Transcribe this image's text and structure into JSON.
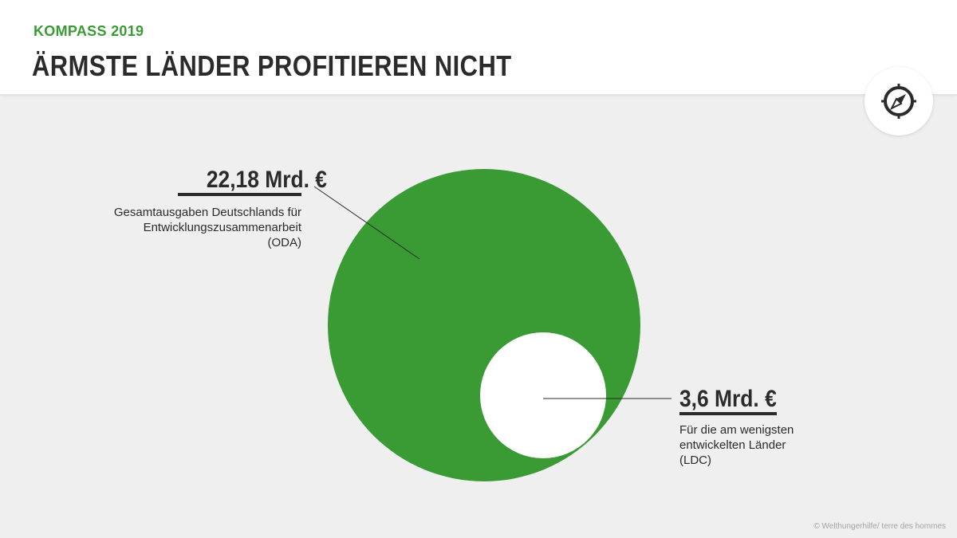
{
  "header": {
    "kicker": "KOMPASS 2019",
    "title": "ÄRMSTE LÄNDER PROFITIEREN NICHT"
  },
  "badge": {
    "icon": "compass-icon"
  },
  "colors": {
    "green": "#3a9b35",
    "text": "#2b2b2b",
    "inner": "#ffffff",
    "background": "#efeff0"
  },
  "chart_data": {
    "type": "nested-circle",
    "title": "ÄRMSTE LÄNDER PROFITIEREN NICHT",
    "unit": "Mrd. €",
    "series": [
      {
        "name": "ODA",
        "value": 22.18,
        "label": "22,18 Mrd. €",
        "description": "Gesamtausgaben Deutschlands für Entwicklungszusammenarbeit (ODA)"
      },
      {
        "name": "LDC",
        "value": 3.6,
        "label": "3,6 Mrd. €",
        "description": "Für die am wenigsten entwickelten Länder (LDC)"
      }
    ]
  },
  "labels": {
    "oda": {
      "value": "22,18 Mrd. €",
      "line1": "Gesamtausgaben Deutschlands für",
      "line2": "Entwicklungszusammenarbeit",
      "line3": "(ODA)"
    },
    "ldc": {
      "value": "3,6 Mrd. €",
      "line1": "Für die am wenigsten",
      "line2": "entwickelten Länder",
      "line3": "(LDC)"
    }
  },
  "credit": "© Welthungerhilfe/ terre des hommes"
}
